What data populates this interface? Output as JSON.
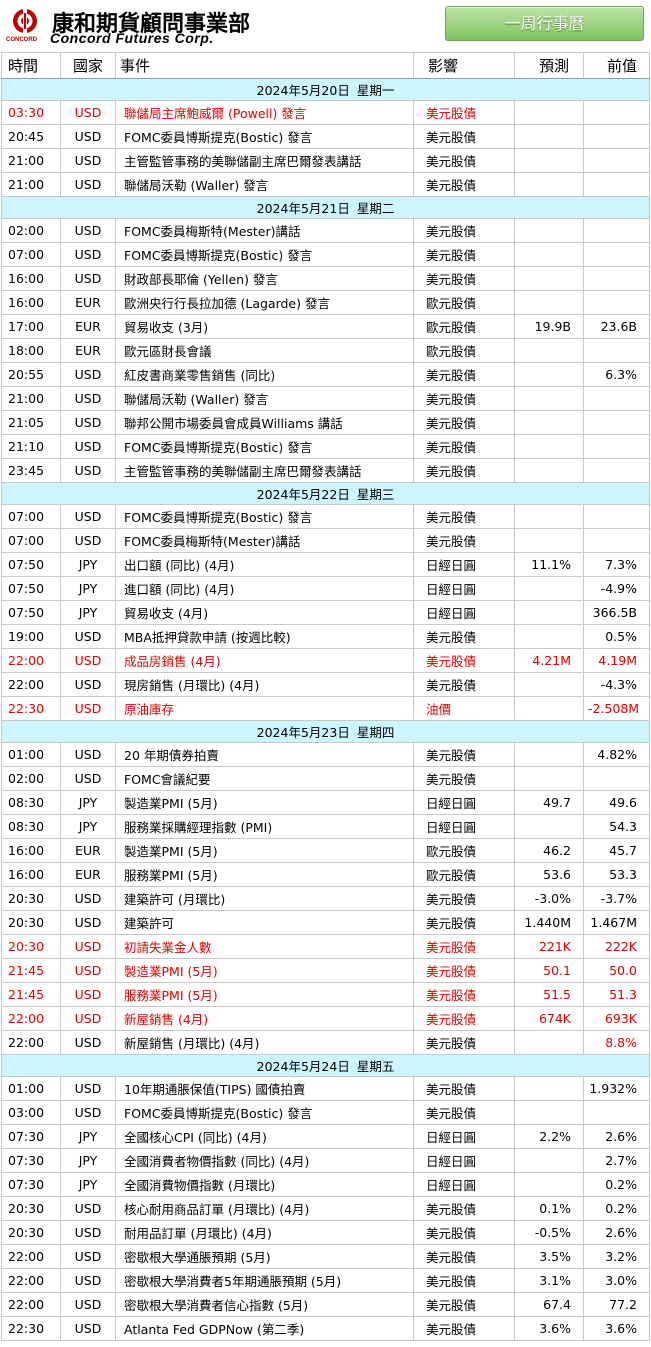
{
  "logo": {
    "cn": "康和期貨顧問事業部",
    "en": "Concord Futures Corp.",
    "small": "CONCORD"
  },
  "button": {
    "label": "一周行事曆"
  },
  "columns": {
    "time": "時間",
    "country": "國家",
    "event": "事件",
    "impact": "影響",
    "forecast": "預測",
    "previous": "前值"
  },
  "colors": {
    "day_header_bg": "#ccf5ff",
    "highlight": "#e00000",
    "button_green": "#7fc35d"
  },
  "days": [
    {
      "date": "2024年5月20日",
      "weekday": "星期一",
      "rows": [
        {
          "time": "03:30",
          "country": "USD",
          "event": "聯儲局主席鮑威爾 (Powell) 發言",
          "impact": "美元股債",
          "forecast": "",
          "previous": "",
          "highlight": true
        },
        {
          "time": "20:45",
          "country": "USD",
          "event": "FOMC委員博斯提克(Bostic) 發言",
          "impact": "美元股債",
          "forecast": "",
          "previous": "",
          "highlight": false
        },
        {
          "time": "21:00",
          "country": "USD",
          "event": "主管監管事務的美聯儲副主席巴爾發表講話",
          "impact": "美元股債",
          "forecast": "",
          "previous": "",
          "highlight": false
        },
        {
          "time": "21:00",
          "country": "USD",
          "event": "聯儲局沃勒 (Waller) 發言",
          "impact": "美元股債",
          "forecast": "",
          "previous": "",
          "highlight": false
        }
      ]
    },
    {
      "date": "2024年5月21日",
      "weekday": "星期二",
      "rows": [
        {
          "time": "02:00",
          "country": "USD",
          "event": "FOMC委員梅斯特(Mester)講話",
          "impact": "美元股債",
          "forecast": "",
          "previous": "",
          "highlight": false
        },
        {
          "time": "07:00",
          "country": "USD",
          "event": "FOMC委員博斯提克(Bostic) 發言",
          "impact": "美元股債",
          "forecast": "",
          "previous": "",
          "highlight": false
        },
        {
          "time": "16:00",
          "country": "USD",
          "event": "財政部長耶倫 (Yellen) 發言",
          "impact": "美元股債",
          "forecast": "",
          "previous": "",
          "highlight": false
        },
        {
          "time": "16:00",
          "country": "EUR",
          "event": "歐洲央行行長拉加德 (Lagarde) 發言",
          "impact": "歐元股債",
          "forecast": "",
          "previous": "",
          "highlight": false
        },
        {
          "time": "17:00",
          "country": "EUR",
          "event": "貿易收支 (3月)",
          "impact": "歐元股債",
          "forecast": "19.9B",
          "previous": "23.6B",
          "highlight": false
        },
        {
          "time": "18:00",
          "country": "EUR",
          "event": "歐元區財長會議",
          "impact": "歐元股債",
          "forecast": "",
          "previous": "",
          "highlight": false
        },
        {
          "time": "20:55",
          "country": "USD",
          "event": "紅皮書商業零售銷售 (同比)",
          "impact": "美元股債",
          "forecast": "",
          "previous": "6.3%",
          "highlight": false
        },
        {
          "time": "21:00",
          "country": "USD",
          "event": "聯儲局沃勒 (Waller) 發言",
          "impact": "美元股債",
          "forecast": "",
          "previous": "",
          "highlight": false
        },
        {
          "time": "21:05",
          "country": "USD",
          "event": "聯邦公開市場委員會成員Williams 講話",
          "impact": "美元股債",
          "forecast": "",
          "previous": "",
          "highlight": false
        },
        {
          "time": "21:10",
          "country": "USD",
          "event": "FOMC委員博斯提克(Bostic) 發言",
          "impact": "美元股債",
          "forecast": "",
          "previous": "",
          "highlight": false
        },
        {
          "time": "23:45",
          "country": "USD",
          "event": "主管監管事務的美聯儲副主席巴爾發表講話",
          "impact": "美元股債",
          "forecast": "",
          "previous": "",
          "highlight": false
        }
      ]
    },
    {
      "date": "2024年5月22日",
      "weekday": "星期三",
      "rows": [
        {
          "time": "07:00",
          "country": "USD",
          "event": "FOMC委員博斯提克(Bostic) 發言",
          "impact": "美元股債",
          "forecast": "",
          "previous": "",
          "highlight": false
        },
        {
          "time": "07:00",
          "country": "USD",
          "event": "FOMC委員梅斯特(Mester)講話",
          "impact": "美元股債",
          "forecast": "",
          "previous": "",
          "highlight": false
        },
        {
          "time": "07:50",
          "country": "JPY",
          "event": "出口額 (同比) (4月)",
          "impact": "日經日圓",
          "forecast": "11.1%",
          "previous": "7.3%",
          "highlight": false
        },
        {
          "time": "07:50",
          "country": "JPY",
          "event": "進口額 (同比) (4月)",
          "impact": "日經日圓",
          "forecast": "",
          "previous": "-4.9%",
          "highlight": false
        },
        {
          "time": "07:50",
          "country": "JPY",
          "event": "貿易收支 (4月)",
          "impact": "日經日圓",
          "forecast": "",
          "previous": "366.5B",
          "highlight": false
        },
        {
          "time": "19:00",
          "country": "USD",
          "event": "MBA抵押貸款申請 (按週比較)",
          "impact": "美元股債",
          "forecast": "",
          "previous": "0.5%",
          "highlight": false
        },
        {
          "time": "22:00",
          "country": "USD",
          "event": "成品房銷售 (4月)",
          "impact": "美元股債",
          "forecast": "4.21M",
          "previous": "4.19M",
          "highlight": true
        },
        {
          "time": "22:00",
          "country": "USD",
          "event": "現房銷售 (月環比) (4月)",
          "impact": "美元股債",
          "forecast": "",
          "previous": "-4.3%",
          "highlight": false
        },
        {
          "time": "22:30",
          "country": "USD",
          "event": "原油庫存",
          "impact": "油價",
          "forecast": "",
          "previous": "-2.508M",
          "highlight": true
        }
      ]
    },
    {
      "date": "2024年5月23日",
      "weekday": "星期四",
      "rows": [
        {
          "time": "01:00",
          "country": "USD",
          "event": "20 年期債券拍賣",
          "impact": "美元股債",
          "forecast": "",
          "previous": "4.82%",
          "highlight": false
        },
        {
          "time": "02:00",
          "country": "USD",
          "event": "FOMC會議紀要",
          "impact": "美元股債",
          "forecast": "",
          "previous": "",
          "highlight": false
        },
        {
          "time": "08:30",
          "country": "JPY",
          "event": "製造業PMI (5月)",
          "impact": "日經日圓",
          "forecast": "49.7",
          "previous": "49.6",
          "highlight": false
        },
        {
          "time": "08:30",
          "country": "JPY",
          "event": "服務業採購經理指數 (PMI)",
          "impact": "日經日圓",
          "forecast": "",
          "previous": "54.3",
          "highlight": false
        },
        {
          "time": "16:00",
          "country": "EUR",
          "event": "製造業PMI (5月)",
          "impact": "歐元股債",
          "forecast": "46.2",
          "previous": "45.7",
          "highlight": false
        },
        {
          "time": "16:00",
          "country": "EUR",
          "event": "服務業PMI (5月)",
          "impact": "歐元股債",
          "forecast": "53.6",
          "previous": "53.3",
          "highlight": false
        },
        {
          "time": "20:30",
          "country": "USD",
          "event": "建築許可 (月環比)",
          "impact": "美元股債",
          "forecast": "-3.0%",
          "previous": "-3.7%",
          "highlight": false
        },
        {
          "time": "20:30",
          "country": "USD",
          "event": "建築許可",
          "impact": "美元股債",
          "forecast": "1.440M",
          "previous": "1.467M",
          "highlight": false
        },
        {
          "time": "20:30",
          "country": "USD",
          "event": "初請失業金人數",
          "impact": "美元股債",
          "forecast": "221K",
          "previous": "222K",
          "highlight": true
        },
        {
          "time": "21:45",
          "country": "USD",
          "event": "製造業PMI (5月)",
          "impact": "美元股債",
          "forecast": "50.1",
          "previous": "50.0",
          "highlight": true
        },
        {
          "time": "21:45",
          "country": "USD",
          "event": "服務業PMI (5月)",
          "impact": "美元股債",
          "forecast": "51.5",
          "previous": "51.3",
          "highlight": true
        },
        {
          "time": "22:00",
          "country": "USD",
          "event": "新屋銷售 (4月)",
          "impact": "美元股債",
          "forecast": "674K",
          "previous": "693K",
          "highlight": true
        },
        {
          "time": "22:00",
          "country": "USD",
          "event": "新屋銷售 (月環比) (4月)",
          "impact": "美元股債",
          "forecast": "",
          "previous": "8.8%",
          "highlight": false,
          "prev_red": true
        }
      ]
    },
    {
      "date": "2024年5月24日",
      "weekday": "星期五",
      "rows": [
        {
          "time": "01:00",
          "country": "USD",
          "event": "10年期通脹保值(TIPS) 國債拍賣",
          "impact": "美元股債",
          "forecast": "",
          "previous": "1.932%",
          "highlight": false
        },
        {
          "time": "03:00",
          "country": "USD",
          "event": "FOMC委員博斯提克(Bostic) 發言",
          "impact": "美元股債",
          "forecast": "",
          "previous": "",
          "highlight": false
        },
        {
          "time": "07:30",
          "country": "JPY",
          "event": "全國核心CPI (同比) (4月)",
          "impact": "日經日圓",
          "forecast": "2.2%",
          "previous": "2.6%",
          "highlight": false
        },
        {
          "time": "07:30",
          "country": "JPY",
          "event": "全國消費者物價指數 (同比) (4月)",
          "impact": "日經日圓",
          "forecast": "",
          "previous": "2.7%",
          "highlight": false
        },
        {
          "time": "07:30",
          "country": "JPY",
          "event": "全國消費物價指數 (月環比)",
          "impact": "日經日圓",
          "forecast": "",
          "previous": "0.2%",
          "highlight": false
        },
        {
          "time": "20:30",
          "country": "USD",
          "event": "核心耐用商品訂單 (月環比) (4月)",
          "impact": "美元股債",
          "forecast": "0.1%",
          "previous": "0.2%",
          "highlight": false
        },
        {
          "time": "20:30",
          "country": "USD",
          "event": "耐用品訂單 (月環比) (4月)",
          "impact": "美元股債",
          "forecast": "-0.5%",
          "previous": "2.6%",
          "highlight": false
        },
        {
          "time": "22:00",
          "country": "USD",
          "event": "密歇根大學通脹預期 (5月)",
          "impact": "美元股債",
          "forecast": "3.5%",
          "previous": "3.2%",
          "highlight": false
        },
        {
          "time": "22:00",
          "country": "USD",
          "event": "密歇根大學消費者5年期通脹預期 (5月)",
          "impact": "美元股債",
          "forecast": "3.1%",
          "previous": "3.0%",
          "highlight": false
        },
        {
          "time": "22:00",
          "country": "USD",
          "event": "密歇根大學消費者信心指數 (5月)",
          "impact": "美元股債",
          "forecast": "67.4",
          "previous": "77.2",
          "highlight": false
        },
        {
          "time": "22:30",
          "country": "USD",
          "event": "Atlanta Fed GDPNow (第二季)",
          "impact": "美元股債",
          "forecast": "3.6%",
          "previous": "3.6%",
          "highlight": false
        }
      ]
    }
  ]
}
